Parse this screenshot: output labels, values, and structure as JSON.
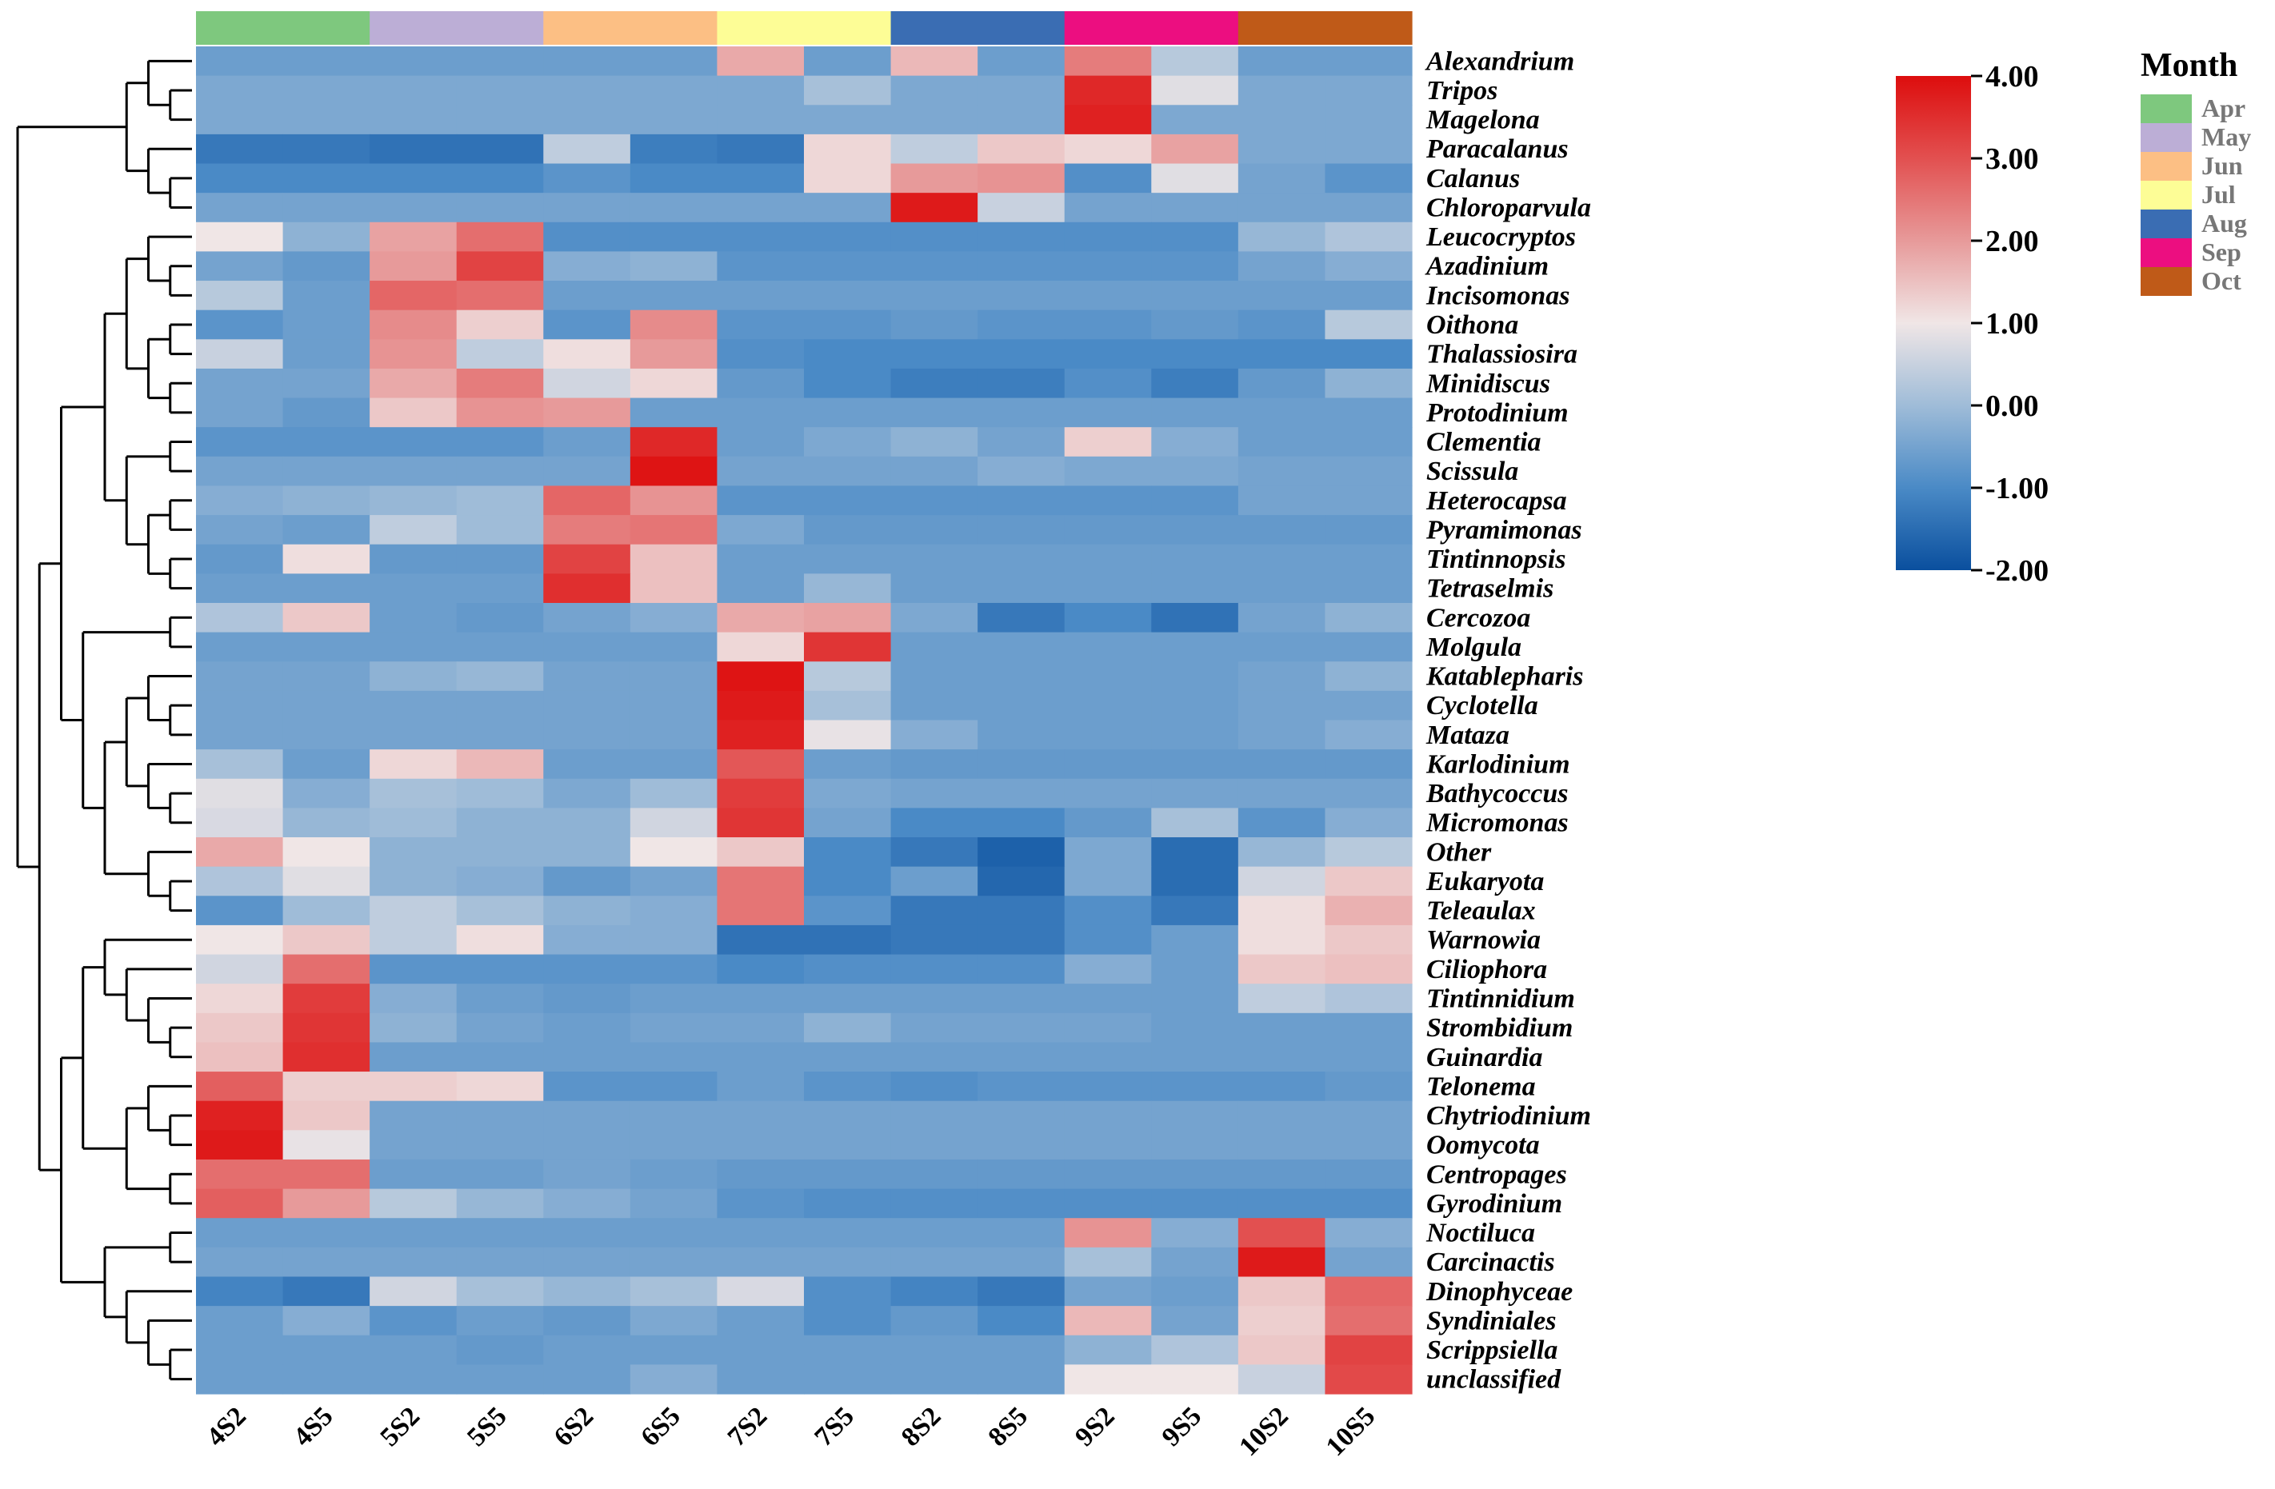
{
  "chart_data": {
    "type": "heatmap",
    "columns": [
      "4S2",
      "4S5",
      "5S2",
      "5S5",
      "6S2",
      "6S5",
      "7S2",
      "7S5",
      "8S2",
      "8S5",
      "9S2",
      "9S5",
      "10S2",
      "10S5"
    ],
    "column_groups": [
      "Apr",
      "Apr",
      "May",
      "May",
      "Jun",
      "Jun",
      "Jul",
      "Jul",
      "Aug",
      "Aug",
      "Sep",
      "Sep",
      "Oct",
      "Oct"
    ],
    "rows": [
      "Alexandrium",
      "Tripos",
      "Magelona",
      "Paracalanus",
      "Calanus",
      "Chloroparvula",
      "Leucocryptos",
      "Azadinium",
      "Incisomonas",
      "Oithona",
      "Thalassiosira",
      "Minidiscus",
      "Protodinium",
      "Clementia",
      "Scissula",
      "Heterocapsa",
      "Pyramimonas",
      "Tintinnopsis",
      "Tetraselmis",
      "Cercozoa",
      "Molgula",
      "Katablepharis",
      "Cyclotella",
      "Mataza",
      "Karlodinium",
      "Bathycoccus",
      "Micromonas",
      "Other",
      "Eukaryota",
      "Teleaulax",
      "Warnowia",
      "Ciliophora",
      "Tintinnidium",
      "Strombidium",
      "Guinardia",
      "Telonema",
      "Chytriodinium",
      "Oomycota",
      "Centropages",
      "Gyrodinium",
      "Noctiluca",
      "Carcinactis",
      "Dinophyceae",
      "Syndiniales",
      "Scrippsiella",
      "unclassified"
    ],
    "values": [
      [
        -0.6,
        -0.6,
        -0.6,
        -0.6,
        -0.6,
        -0.6,
        1.8,
        -0.6,
        1.6,
        -0.6,
        2.4,
        0.3,
        -0.6,
        -0.6
      ],
      [
        -0.4,
        -0.4,
        -0.4,
        -0.4,
        -0.4,
        -0.4,
        -0.4,
        0.1,
        -0.4,
        -0.4,
        3.6,
        0.8,
        -0.4,
        -0.4
      ],
      [
        -0.4,
        -0.4,
        -0.4,
        -0.4,
        -0.4,
        -0.4,
        -0.4,
        -0.4,
        -0.4,
        -0.4,
        3.7,
        -0.4,
        -0.4,
        -0.4
      ],
      [
        -1.3,
        -1.3,
        -1.4,
        -1.4,
        0.4,
        -1.2,
        -1.3,
        1.2,
        0.4,
        1.4,
        1.2,
        1.9,
        -0.4,
        -0.4
      ],
      [
        -1.0,
        -1.0,
        -1.0,
        -1.0,
        -0.8,
        -1.0,
        -1.0,
        1.2,
        2.0,
        2.1,
        -0.9,
        0.8,
        -0.5,
        -0.8
      ],
      [
        -0.5,
        -0.5,
        -0.5,
        -0.5,
        -0.5,
        -0.5,
        -0.5,
        -0.5,
        3.8,
        0.5,
        -0.5,
        -0.5,
        -0.5,
        -0.5
      ],
      [
        1.0,
        -0.2,
        1.9,
        2.6,
        -0.9,
        -0.9,
        -0.9,
        -0.9,
        -0.9,
        -0.9,
        -0.9,
        -0.9,
        -0.1,
        0.2
      ],
      [
        -0.5,
        -0.7,
        2.0,
        3.2,
        -0.3,
        -0.2,
        -0.8,
        -0.8,
        -0.8,
        -0.8,
        -0.8,
        -0.8,
        -0.5,
        -0.3
      ],
      [
        0.3,
        -0.6,
        2.7,
        2.6,
        -0.6,
        -0.6,
        -0.6,
        -0.6,
        -0.6,
        -0.6,
        -0.6,
        -0.6,
        -0.6,
        -0.6
      ],
      [
        -0.8,
        -0.6,
        2.2,
        1.3,
        -0.8,
        2.2,
        -0.8,
        -0.8,
        -0.7,
        -0.8,
        -0.8,
        -0.7,
        -0.8,
        0.3
      ],
      [
        0.5,
        -0.6,
        2.1,
        0.4,
        1.1,
        2.0,
        -0.9,
        -1.0,
        -1.0,
        -1.0,
        -1.0,
        -1.0,
        -1.0,
        -1.0
      ],
      [
        -0.5,
        -0.5,
        1.8,
        2.4,
        0.6,
        1.2,
        -0.7,
        -1.0,
        -1.2,
        -1.2,
        -0.9,
        -1.2,
        -0.7,
        -0.2
      ],
      [
        -0.5,
        -0.7,
        1.4,
        2.1,
        2.0,
        -0.6,
        -0.6,
        -0.6,
        -0.6,
        -0.6,
        -0.6,
        -0.6,
        -0.6,
        -0.6
      ],
      [
        -0.8,
        -0.8,
        -0.8,
        -0.8,
        -0.6,
        3.6,
        -0.6,
        -0.4,
        -0.2,
        -0.5,
        1.3,
        -0.3,
        -0.6,
        -0.6
      ],
      [
        -0.5,
        -0.5,
        -0.5,
        -0.5,
        -0.5,
        3.9,
        -0.5,
        -0.5,
        -0.5,
        -0.3,
        -0.4,
        -0.4,
        -0.5,
        -0.5
      ],
      [
        -0.3,
        -0.2,
        -0.1,
        0.0,
        2.7,
        2.1,
        -0.8,
        -0.8,
        -0.8,
        -0.8,
        -0.8,
        -0.8,
        -0.5,
        -0.5
      ],
      [
        -0.5,
        -0.6,
        0.4,
        0.0,
        2.4,
        2.5,
        -0.4,
        -0.7,
        -0.7,
        -0.7,
        -0.7,
        -0.7,
        -0.7,
        -0.7
      ],
      [
        -0.7,
        1.1,
        -0.7,
        -0.7,
        3.2,
        1.5,
        -0.6,
        -0.6,
        -0.6,
        -0.6,
        -0.6,
        -0.6,
        -0.6,
        -0.6
      ],
      [
        -0.6,
        -0.6,
        -0.6,
        -0.6,
        3.5,
        1.5,
        -0.6,
        -0.1,
        -0.6,
        -0.6,
        -0.6,
        -0.6,
        -0.6,
        -0.6
      ],
      [
        0.2,
        1.4,
        -0.6,
        -0.7,
        -0.5,
        -0.3,
        1.8,
        1.9,
        -0.4,
        -1.3,
        -1.0,
        -1.4,
        -0.5,
        -0.2
      ],
      [
        -0.6,
        -0.6,
        -0.6,
        -0.6,
        -0.6,
        -0.6,
        1.2,
        3.4,
        -0.6,
        -0.6,
        -0.6,
        -0.6,
        -0.6,
        -0.6
      ],
      [
        -0.5,
        -0.5,
        -0.2,
        -0.1,
        -0.5,
        -0.5,
        3.9,
        0.3,
        -0.6,
        -0.6,
        -0.6,
        -0.6,
        -0.5,
        -0.2
      ],
      [
        -0.5,
        -0.5,
        -0.5,
        -0.5,
        -0.5,
        -0.5,
        3.8,
        0.1,
        -0.6,
        -0.6,
        -0.6,
        -0.6,
        -0.5,
        -0.5
      ],
      [
        -0.5,
        -0.5,
        -0.5,
        -0.5,
        -0.5,
        -0.5,
        3.7,
        0.9,
        -0.3,
        -0.6,
        -0.6,
        -0.6,
        -0.5,
        -0.3
      ],
      [
        0.1,
        -0.6,
        1.2,
        1.6,
        -0.6,
        -0.6,
        2.9,
        -0.6,
        -0.7,
        -0.7,
        -0.7,
        -0.7,
        -0.7,
        -0.7
      ],
      [
        0.8,
        -0.3,
        0.1,
        0.0,
        -0.4,
        0.0,
        3.3,
        -0.4,
        -0.5,
        -0.5,
        -0.5,
        -0.5,
        -0.5,
        -0.5
      ],
      [
        0.7,
        -0.1,
        0.0,
        -0.2,
        -0.2,
        0.6,
        3.4,
        -0.5,
        -1.0,
        -1.0,
        -0.7,
        0.1,
        -0.8,
        -0.3
      ],
      [
        1.8,
        1.0,
        -0.2,
        -0.2,
        -0.2,
        1.0,
        1.4,
        -1.0,
        -1.3,
        -1.7,
        -0.4,
        -1.5,
        -0.1,
        0.3
      ],
      [
        0.2,
        0.8,
        -0.2,
        -0.3,
        -0.7,
        -0.5,
        2.5,
        -1.0,
        -0.6,
        -1.6,
        -0.4,
        -1.5,
        0.6,
        1.4
      ],
      [
        -0.8,
        0.0,
        0.4,
        0.1,
        -0.2,
        -0.3,
        2.5,
        -0.8,
        -1.3,
        -1.3,
        -0.9,
        -1.3,
        1.1,
        1.7
      ],
      [
        1.0,
        1.4,
        0.4,
        1.1,
        -0.3,
        -0.3,
        -1.4,
        -1.4,
        -1.3,
        -1.3,
        -0.9,
        -0.6,
        1.1,
        1.4
      ],
      [
        0.6,
        2.6,
        -0.8,
        -0.8,
        -0.8,
        -0.8,
        -1.0,
        -0.9,
        -0.9,
        -0.9,
        -0.3,
        -0.6,
        1.4,
        1.5
      ],
      [
        1.2,
        3.3,
        -0.3,
        -0.6,
        -0.7,
        -0.6,
        -0.6,
        -0.6,
        -0.6,
        -0.6,
        -0.6,
        -0.6,
        0.4,
        0.2
      ],
      [
        1.4,
        3.4,
        -0.2,
        -0.5,
        -0.6,
        -0.5,
        -0.5,
        -0.2,
        -0.5,
        -0.5,
        -0.5,
        -0.6,
        -0.6,
        -0.6
      ],
      [
        1.5,
        3.5,
        -0.6,
        -0.6,
        -0.6,
        -0.6,
        -0.6,
        -0.6,
        -0.6,
        -0.6,
        -0.6,
        -0.6,
        -0.6,
        -0.6
      ],
      [
        2.8,
        1.3,
        1.3,
        1.2,
        -0.8,
        -0.8,
        -0.6,
        -0.8,
        -0.9,
        -0.8,
        -0.8,
        -0.8,
        -0.8,
        -0.7
      ],
      [
        3.7,
        1.4,
        -0.5,
        -0.5,
        -0.5,
        -0.5,
        -0.5,
        -0.5,
        -0.5,
        -0.5,
        -0.5,
        -0.5,
        -0.5,
        -0.5
      ],
      [
        3.8,
        0.9,
        -0.5,
        -0.5,
        -0.5,
        -0.5,
        -0.5,
        -0.5,
        -0.5,
        -0.5,
        -0.5,
        -0.5,
        -0.5,
        -0.5
      ],
      [
        2.6,
        2.6,
        -0.6,
        -0.6,
        -0.5,
        -0.6,
        -0.7,
        -0.7,
        -0.7,
        -0.7,
        -0.7,
        -0.7,
        -0.7,
        -0.7
      ],
      [
        2.8,
        2.0,
        0.3,
        -0.1,
        -0.3,
        -0.5,
        -0.8,
        -0.9,
        -0.9,
        -0.9,
        -0.9,
        -0.9,
        -0.9,
        -0.9
      ],
      [
        -0.6,
        -0.6,
        -0.6,
        -0.6,
        -0.6,
        -0.6,
        -0.6,
        -0.6,
        -0.6,
        -0.6,
        2.1,
        -0.3,
        3.0,
        -0.3
      ],
      [
        -0.5,
        -0.5,
        -0.5,
        -0.5,
        -0.5,
        -0.5,
        -0.5,
        -0.5,
        -0.5,
        -0.5,
        0.1,
        -0.5,
        3.8,
        -0.5
      ],
      [
        -1.1,
        -1.3,
        0.6,
        0.1,
        -0.1,
        0.1,
        0.7,
        -0.9,
        -1.1,
        -1.3,
        -0.5,
        -0.6,
        1.4,
        2.7
      ],
      [
        -0.6,
        -0.3,
        -0.8,
        -0.6,
        -0.7,
        -0.4,
        -0.6,
        -0.9,
        -0.7,
        -1.0,
        1.6,
        -0.5,
        1.3,
        2.6
      ],
      [
        -0.6,
        -0.6,
        -0.6,
        -0.7,
        -0.6,
        -0.6,
        -0.6,
        -0.6,
        -0.6,
        -0.6,
        -0.2,
        0.2,
        1.4,
        3.2
      ],
      [
        -0.6,
        -0.6,
        -0.6,
        -0.6,
        -0.6,
        -0.3,
        -0.6,
        -0.6,
        -0.6,
        -0.6,
        1.0,
        1.0,
        0.5,
        3.1
      ]
    ],
    "colorscale": {
      "min": -2.0,
      "max": 4.0,
      "stops": [
        {
          "v": -2.0,
          "color": "#0a4f9e"
        },
        {
          "v": -1.0,
          "color": "#4a8ac6"
        },
        {
          "v": 0.0,
          "color": "#9fbcd8"
        },
        {
          "v": 1.0,
          "color": "#f0e6e6"
        },
        {
          "v": 2.0,
          "color": "#e79a9a"
        },
        {
          "v": 3.0,
          "color": "#e25050"
        },
        {
          "v": 4.0,
          "color": "#dd0d0d"
        }
      ],
      "ticks": [
        "4.00",
        "3.00",
        "2.00",
        "1.00",
        "0.00",
        "-1.00",
        "-2.00"
      ]
    },
    "legend": {
      "title": "Month",
      "items": [
        {
          "label": "Apr",
          "color": "#7ec87e"
        },
        {
          "label": "May",
          "color": "#bcaed6"
        },
        {
          "label": "Jun",
          "color": "#fcbf84"
        },
        {
          "label": "Jul",
          "color": "#fdfd96"
        },
        {
          "label": "Aug",
          "color": "#3a6db3"
        },
        {
          "label": "Sep",
          "color": "#ec0e80"
        },
        {
          "label": "Oct",
          "color": "#bf5a18"
        }
      ],
      "placement": "top-right"
    }
  }
}
